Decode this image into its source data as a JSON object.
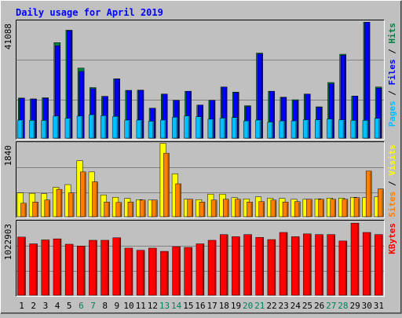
{
  "title": "Daily usage for April 2019",
  "colors": {
    "background": "#c0c0c0",
    "title": "#0000ff",
    "hits": "#008040",
    "files": "#0000ff",
    "pages": "#00c0ff",
    "visits": "#ffff00",
    "sites": "#ff8000",
    "kbytes": "#ff0000",
    "weekend_day": "#00805c",
    "weekday": "#000000"
  },
  "chart_data": [
    {
      "type": "bar",
      "panel": "hits-files-pages",
      "ylabel_max": "41088",
      "ylim": [
        0,
        41088
      ],
      "legend": [
        {
          "text": "Pages",
          "color": "#00c0ff"
        },
        {
          "text": " / ",
          "color": "#000000"
        },
        {
          "text": "Files",
          "color": "#0000ff"
        },
        {
          "text": " / ",
          "color": "#000000"
        },
        {
          "text": "Hits",
          "color": "#008040"
        }
      ],
      "categories": [
        "1",
        "2",
        "3",
        "4",
        "5",
        "6",
        "7",
        "8",
        "9",
        "10",
        "11",
        "12",
        "13",
        "14",
        "15",
        "16",
        "17",
        "18",
        "19",
        "20",
        "21",
        "22",
        "23",
        "24",
        "25",
        "26",
        "27",
        "28",
        "29",
        "30",
        "31"
      ],
      "series": [
        {
          "name": "Hits",
          "values": [
            14200,
            13900,
            14300,
            33800,
            38200,
            24800,
            17900,
            14800,
            21000,
            16900,
            17000,
            10600,
            15600,
            13400,
            16600,
            11700,
            13400,
            18100,
            16300,
            11500,
            30100,
            16600,
            14500,
            13600,
            15600,
            11100,
            19700,
            29700,
            14900,
            41000,
            18100
          ]
        },
        {
          "name": "Files",
          "values": [
            14100,
            13800,
            14100,
            32700,
            38000,
            23600,
            17500,
            14800,
            20900,
            16900,
            16900,
            10600,
            15600,
            13400,
            16600,
            11700,
            13400,
            18100,
            16100,
            11200,
            29800,
            16600,
            14400,
            13300,
            15600,
            10900,
            19200,
            29300,
            14900,
            41000,
            17700
          ]
        },
        {
          "name": "Pages",
          "values": [
            6400,
            6300,
            6300,
            7800,
            7000,
            7800,
            8300,
            8000,
            7700,
            6400,
            6400,
            6000,
            6400,
            7400,
            7900,
            7600,
            6700,
            7100,
            7300,
            6100,
            6400,
            5700,
            6100,
            6100,
            6500,
            6500,
            6800,
            6500,
            6300,
            6300,
            7000
          ]
        }
      ]
    },
    {
      "type": "bar",
      "panel": "visits-sites",
      "ylabel_max": "1840",
      "ylim": [
        0,
        1840
      ],
      "legend": [
        {
          "text": "Sites",
          "color": "#ff8000"
        },
        {
          "text": " / ",
          "color": "#000000"
        },
        {
          "text": "Visits",
          "color": "#ffff00"
        }
      ],
      "categories": [
        "1",
        "2",
        "3",
        "4",
        "5",
        "6",
        "7",
        "8",
        "9",
        "10",
        "11",
        "12",
        "13",
        "14",
        "15",
        "16",
        "17",
        "18",
        "19",
        "20",
        "21",
        "22",
        "23",
        "24",
        "25",
        "26",
        "27",
        "28",
        "29",
        "30",
        "31"
      ],
      "series": [
        {
          "name": "Visits",
          "values": [
            600,
            590,
            580,
            740,
            810,
            1410,
            1130,
            550,
            490,
            460,
            430,
            420,
            1850,
            1080,
            440,
            430,
            570,
            570,
            480,
            450,
            500,
            470,
            460,
            440,
            440,
            450,
            470,
            470,
            490,
            480,
            500
          ]
        },
        {
          "name": "Sites",
          "values": [
            340,
            370,
            420,
            690,
            600,
            1130,
            880,
            370,
            360,
            370,
            420,
            420,
            1600,
            830,
            440,
            370,
            420,
            440,
            440,
            370,
            380,
            420,
            370,
            380,
            440,
            440,
            440,
            440,
            480,
            1150,
            700
          ]
        }
      ]
    },
    {
      "type": "bar",
      "panel": "kbytes",
      "ylabel_max": "1022903",
      "ylim": [
        0,
        1022903
      ],
      "legend": [
        {
          "text": "KBytes",
          "color": "#ff0000"
        }
      ],
      "categories": [
        "1",
        "2",
        "3",
        "4",
        "5",
        "6",
        "7",
        "8",
        "9",
        "10",
        "11",
        "12",
        "13",
        "14",
        "15",
        "16",
        "17",
        "18",
        "19",
        "20",
        "21",
        "22",
        "23",
        "24",
        "25",
        "26",
        "27",
        "28",
        "29",
        "30",
        "31"
      ],
      "series": [
        {
          "name": "KBytes",
          "values": [
            815000,
            720000,
            775000,
            790000,
            715000,
            690000,
            770000,
            770000,
            805000,
            660000,
            630000,
            660000,
            615000,
            680000,
            670000,
            720000,
            770000,
            850000,
            820000,
            850000,
            810000,
            780000,
            880000,
            820000,
            860000,
            850000,
            850000,
            760000,
            1010000,
            880000,
            850000
          ]
        }
      ]
    }
  ],
  "days": [
    {
      "label": "1",
      "weekend": false
    },
    {
      "label": "2",
      "weekend": false
    },
    {
      "label": "3",
      "weekend": false
    },
    {
      "label": "4",
      "weekend": false
    },
    {
      "label": "5",
      "weekend": false
    },
    {
      "label": "6",
      "weekend": true
    },
    {
      "label": "7",
      "weekend": true
    },
    {
      "label": "8",
      "weekend": false
    },
    {
      "label": "9",
      "weekend": false
    },
    {
      "label": "10",
      "weekend": false
    },
    {
      "label": "11",
      "weekend": false
    },
    {
      "label": "12",
      "weekend": false
    },
    {
      "label": "13",
      "weekend": true
    },
    {
      "label": "14",
      "weekend": true
    },
    {
      "label": "15",
      "weekend": false
    },
    {
      "label": "16",
      "weekend": false
    },
    {
      "label": "17",
      "weekend": false
    },
    {
      "label": "18",
      "weekend": false
    },
    {
      "label": "19",
      "weekend": false
    },
    {
      "label": "20",
      "weekend": true
    },
    {
      "label": "21",
      "weekend": true
    },
    {
      "label": "22",
      "weekend": false
    },
    {
      "label": "23",
      "weekend": false
    },
    {
      "label": "24",
      "weekend": false
    },
    {
      "label": "25",
      "weekend": false
    },
    {
      "label": "26",
      "weekend": false
    },
    {
      "label": "27",
      "weekend": true
    },
    {
      "label": "28",
      "weekend": true
    },
    {
      "label": "29",
      "weekend": false
    },
    {
      "label": "30",
      "weekend": false
    },
    {
      "label": "31",
      "weekend": false
    }
  ]
}
